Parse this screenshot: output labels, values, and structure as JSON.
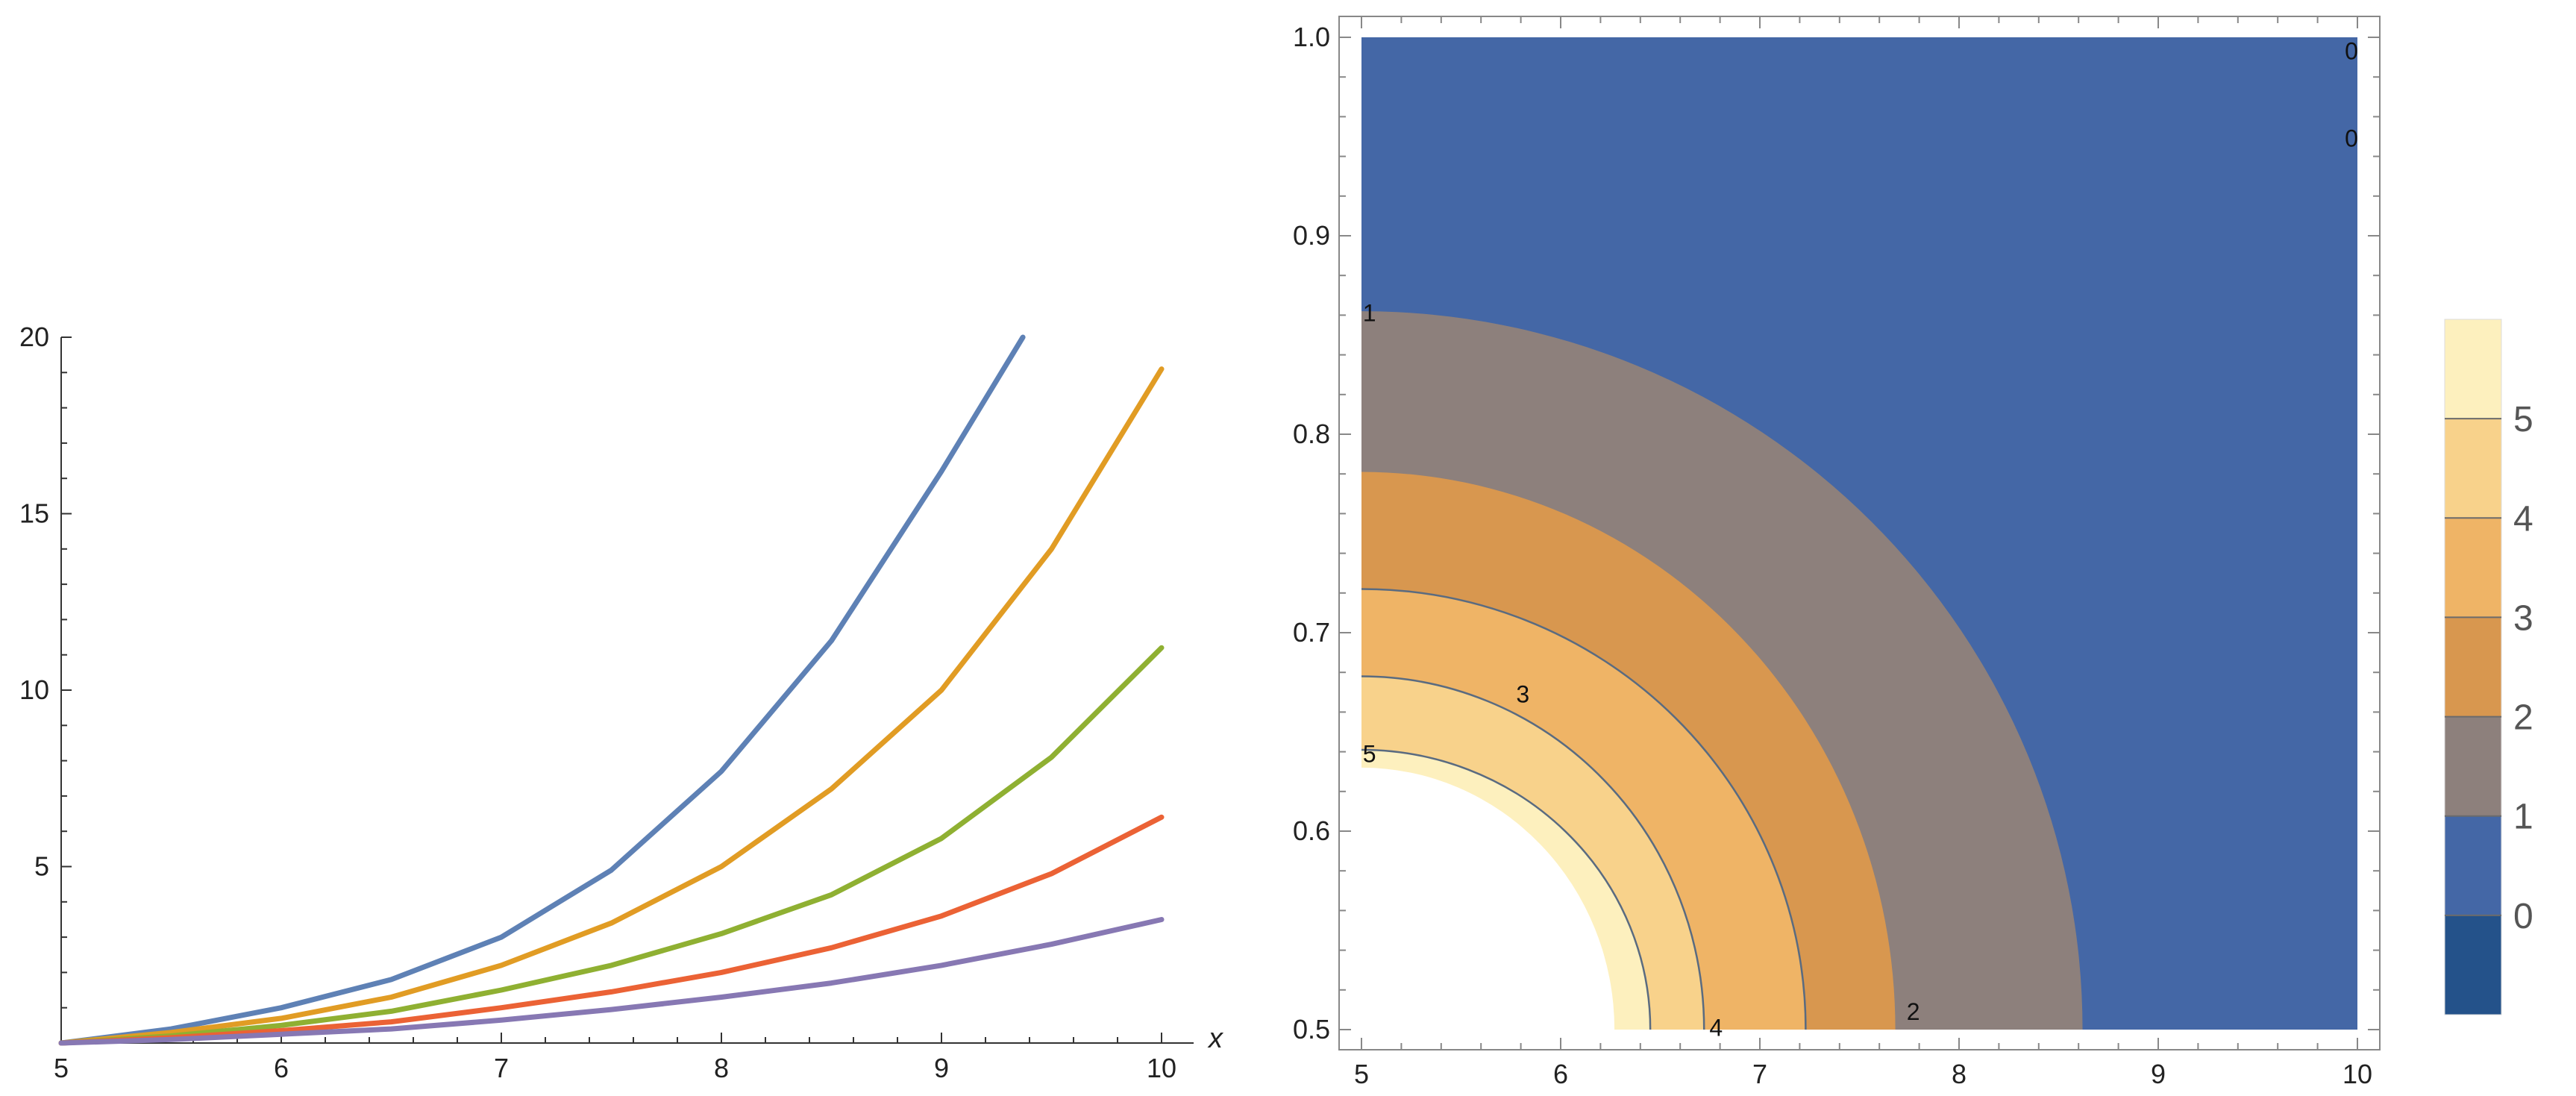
{
  "chart_data": [
    {
      "id": "line-plot",
      "type": "line",
      "xlabel": "x",
      "ylabel": "",
      "xlim": [
        5,
        10
      ],
      "ylim": [
        0,
        20
      ],
      "x_ticks": [
        5,
        6,
        7,
        8,
        9,
        10
      ],
      "y_ticks": [
        5,
        10,
        15,
        20
      ],
      "x_tick_labels": [
        "5",
        "6",
        "7",
        "8",
        "9",
        "10"
      ],
      "y_tick_labels": [
        "5",
        "10",
        "15",
        "20"
      ],
      "series": [
        {
          "name": "series-1",
          "color": "#5E81B5",
          "x": [
            5,
            5.5,
            6,
            6.5,
            7,
            7.5,
            8,
            8.5,
            9,
            9.37
          ],
          "y": [
            0,
            0.4,
            1.0,
            1.8,
            3.0,
            4.9,
            7.7,
            11.4,
            16.2,
            20.0
          ]
        },
        {
          "name": "series-2",
          "color": "#E19C24",
          "x": [
            5,
            5.5,
            6,
            6.5,
            7,
            7.5,
            8,
            8.5,
            9,
            9.5,
            10
          ],
          "y": [
            0,
            0.3,
            0.7,
            1.3,
            2.2,
            3.4,
            5.0,
            7.2,
            10.0,
            14.0,
            19.1
          ]
        },
        {
          "name": "series-3",
          "color": "#8FB032",
          "x": [
            5,
            5.5,
            6,
            6.5,
            7,
            7.5,
            8,
            8.5,
            9,
            9.5,
            10
          ],
          "y": [
            0,
            0.2,
            0.5,
            0.9,
            1.5,
            2.2,
            3.1,
            4.2,
            5.8,
            8.1,
            11.2
          ]
        },
        {
          "name": "series-4",
          "color": "#EB6235",
          "x": [
            5,
            5.5,
            6,
            6.5,
            7,
            7.5,
            8,
            8.5,
            9,
            9.5,
            10
          ],
          "y": [
            0,
            0.15,
            0.35,
            0.6,
            1.0,
            1.45,
            2.0,
            2.7,
            3.6,
            4.8,
            6.4
          ]
        },
        {
          "name": "series-5",
          "color": "#8778B3",
          "x": [
            5,
            5.5,
            6,
            6.5,
            7,
            7.5,
            8,
            8.5,
            9,
            9.5,
            10
          ],
          "y": [
            0,
            0.1,
            0.25,
            0.4,
            0.65,
            0.95,
            1.3,
            1.7,
            2.2,
            2.8,
            3.5
          ]
        }
      ]
    },
    {
      "id": "contour-plot",
      "type": "contour",
      "xlim": [
        5,
        10
      ],
      "ylim": [
        0.5,
        1.0
      ],
      "x_ticks": [
        5,
        6,
        7,
        8,
        9,
        10
      ],
      "y_ticks": [
        0.5,
        0.6,
        0.7,
        0.8,
        0.9,
        1.0
      ],
      "x_tick_labels": [
        "5",
        "6",
        "7",
        "8",
        "9",
        "10"
      ],
      "y_tick_labels": [
        "0.5",
        "0.6",
        "0.7",
        "0.8",
        "0.9",
        "1.0"
      ],
      "regions": [
        {
          "range": "0-1",
          "color": "#4467A6",
          "boundary": {
            "x_at_bottom": 10.0,
            "y_at_left": 1.0
          }
        },
        {
          "range": "1-2",
          "color": "#8D807C",
          "boundary": {
            "x_at_bottom": 8.62,
            "y_at_left": 0.862
          }
        },
        {
          "range": "2-3",
          "color": "#D8974F",
          "boundary": {
            "x_at_bottom": 7.68,
            "y_at_left": 0.781
          }
        },
        {
          "range": "3-4",
          "color": "#EFB466",
          "boundary": {
            "x_at_bottom": 7.23,
            "y_at_left": 0.722
          }
        },
        {
          "range": "4-5",
          "color": "#F8D28B",
          "boundary": {
            "x_at_bottom": 6.72,
            "y_at_left": 0.678
          }
        },
        {
          "range": "5-6",
          "color": "#FDF0BE",
          "boundary": {
            "x_at_bottom": 6.45,
            "y_at_left": 0.641
          }
        }
      ],
      "no_data_region": {
        "x_at_bottom": 6.27,
        "y_at_left": 0.632
      },
      "contour_lines": [
        {
          "level": 3,
          "x_at_bottom": 7.23,
          "y_at_left": 0.722
        },
        {
          "level": 4,
          "x_at_bottom": 6.72,
          "y_at_left": 0.678
        },
        {
          "level": 5,
          "x_at_bottom": 6.45,
          "y_at_left": 0.641
        }
      ],
      "contour_labels": [
        {
          "text": "0",
          "x": 9.97,
          "y": 0.993
        },
        {
          "text": "0",
          "x": 9.97,
          "y": 0.949
        },
        {
          "text": "1",
          "x": 5.04,
          "y": 0.861
        },
        {
          "text": "3",
          "x": 5.81,
          "y": 0.669
        },
        {
          "text": "5",
          "x": 5.04,
          "y": 0.639
        },
        {
          "text": "4",
          "x": 6.78,
          "y": 0.501
        },
        {
          "text": "2",
          "x": 7.77,
          "y": 0.509
        }
      ],
      "legend": {
        "levels": [
          "0",
          "1",
          "2",
          "3",
          "4",
          "5"
        ],
        "colors": [
          "#24528A",
          "#4467A6",
          "#8D807C",
          "#D8974F",
          "#EFB466",
          "#F8D28B",
          "#FDF0BE"
        ]
      }
    }
  ]
}
